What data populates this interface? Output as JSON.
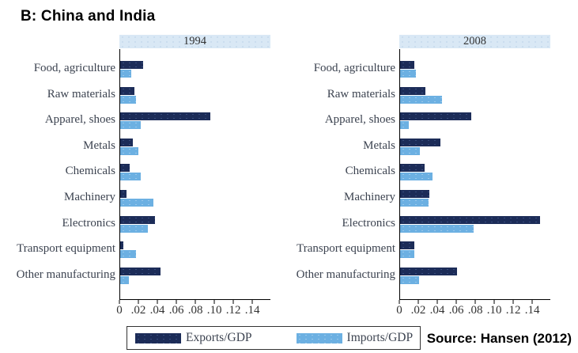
{
  "title": "B: China and India",
  "source": "Source: Hansen (2012)",
  "legend": {
    "exports": "Exports/GDP",
    "imports": "Imports/GDP"
  },
  "colors": {
    "exports": "#1c2c58",
    "imports": "#6cb0e2",
    "header_bg": "#d9e8f5",
    "axis": "#000000"
  },
  "chart_data": [
    {
      "type": "bar",
      "orientation": "horizontal",
      "panel_title": "1994",
      "categories": [
        "Food, agriculture",
        "Raw materials",
        "Apparel, shoes",
        "Metals",
        "Chemicals",
        "Machinery",
        "Electronics",
        "Transport equipment",
        "Other manufacturing"
      ],
      "series": [
        {
          "name": "Exports/GDP",
          "values": [
            0.024,
            0.015,
            0.095,
            0.013,
            0.01,
            0.007,
            0.037,
            0.003,
            0.043
          ]
        },
        {
          "name": "Imports/GDP",
          "values": [
            0.012,
            0.017,
            0.022,
            0.019,
            0.022,
            0.035,
            0.029,
            0.017,
            0.009
          ]
        }
      ],
      "xlim": [
        0,
        0.159
      ],
      "xtick_values": [
        0,
        0.02,
        0.04,
        0.06,
        0.08,
        0.1,
        0.12,
        0.14
      ],
      "xtick_labels": [
        "0",
        ".02",
        ".04",
        ".06",
        ".08",
        ".10",
        ".12",
        ".14"
      ],
      "grid": false,
      "legend_position": "bottom"
    },
    {
      "type": "bar",
      "orientation": "horizontal",
      "panel_title": "2008",
      "categories": [
        "Food, agriculture",
        "Raw materials",
        "Apparel, shoes",
        "Metals",
        "Chemicals",
        "Machinery",
        "Electronics",
        "Transport equipment",
        "Other manufacturing"
      ],
      "series": [
        {
          "name": "Exports/GDP",
          "values": [
            0.015,
            0.027,
            0.075,
            0.043,
            0.026,
            0.031,
            0.148,
            0.015,
            0.06
          ]
        },
        {
          "name": "Imports/GDP",
          "values": [
            0.017,
            0.044,
            0.009,
            0.021,
            0.034,
            0.03,
            0.078,
            0.015,
            0.02
          ]
        }
      ],
      "xlim": [
        0,
        0.159
      ],
      "xtick_values": [
        0,
        0.02,
        0.04,
        0.06,
        0.08,
        0.1,
        0.12,
        0.14
      ],
      "xtick_labels": [
        "0",
        ".02",
        ".04",
        ".06",
        ".08",
        ".10",
        ".12",
        ".14"
      ],
      "grid": false,
      "legend_position": "bottom"
    }
  ]
}
